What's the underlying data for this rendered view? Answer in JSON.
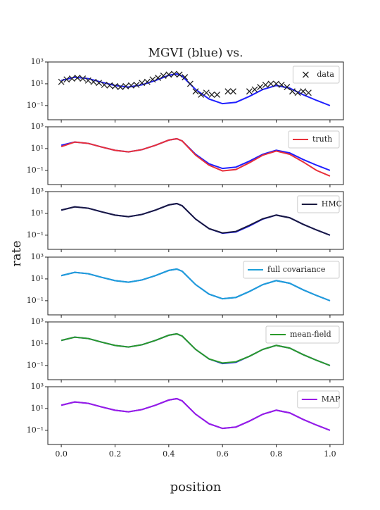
{
  "chart_data": [
    {
      "type": "line",
      "title": "MGVI (blue) vs.",
      "x": [
        0,
        0.05,
        0.1,
        0.15,
        0.2,
        0.25,
        0.3,
        0.35,
        0.4,
        0.43,
        0.45,
        0.5,
        0.55,
        0.6,
        0.65,
        0.7,
        0.75,
        0.8,
        0.85,
        0.9,
        0.95,
        1.0
      ],
      "series": [
        {
          "color": "#1f1fff",
          "values": [
            20,
            40,
            30,
            14,
            7,
            5,
            8,
            20,
            60,
            80,
            50,
            3,
            0.4,
            0.15,
            0.2,
            0.7,
            3,
            7,
            4,
            1,
            0.3,
            0.1
          ]
        },
        {
          "name": "data",
          "type": "scatter",
          "color": "#222222",
          "x": [
            0,
            0.02,
            0.04,
            0.06,
            0.08,
            0.1,
            0.12,
            0.14,
            0.16,
            0.18,
            0.2,
            0.22,
            0.24,
            0.26,
            0.28,
            0.3,
            0.32,
            0.34,
            0.36,
            0.38,
            0.4,
            0.42,
            0.44,
            0.46,
            0.48,
            0.5,
            0.52,
            0.54,
            0.56,
            0.58,
            0.62,
            0.64,
            0.7,
            0.72,
            0.74,
            0.76,
            0.78,
            0.8,
            0.82,
            0.84,
            0.86,
            0.88,
            0.9,
            0.92
          ],
          "values": [
            15,
            25,
            30,
            35,
            30,
            20,
            15,
            12,
            8,
            7,
            6,
            5,
            6,
            7,
            8,
            12,
            15,
            25,
            35,
            55,
            70,
            80,
            70,
            40,
            10,
            2,
            1,
            1.5,
            1,
            1,
            2,
            2,
            2,
            3,
            5,
            8,
            10,
            10,
            8,
            5,
            2,
            1.5,
            2,
            1.5
          ]
        }
      ],
      "ylog": true,
      "ylim": [
        0.005,
        1000
      ],
      "yticks": [
        {
          "value": 0.1,
          "label": "10⁻¹"
        },
        {
          "value": 10,
          "label": "10¹"
        },
        {
          "value": 1000,
          "label": "10³"
        }
      ],
      "xlim": [
        -0.05,
        1.05
      ],
      "xticks": [
        0,
        0.2,
        0.4,
        0.6,
        0.8,
        1.0
      ],
      "legend": "upper right"
    },
    {
      "type": "line",
      "x": [
        0,
        0.05,
        0.1,
        0.15,
        0.2,
        0.25,
        0.3,
        0.35,
        0.4,
        0.43,
        0.45,
        0.5,
        0.55,
        0.6,
        0.65,
        0.7,
        0.75,
        0.8,
        0.85,
        0.9,
        0.95,
        1.0
      ],
      "series": [
        {
          "color": "#1f1fff",
          "values": [
            20,
            40,
            30,
            14,
            7,
            5,
            8,
            20,
            60,
            80,
            50,
            3,
            0.4,
            0.15,
            0.2,
            0.7,
            3,
            7,
            4,
            1,
            0.3,
            0.1
          ]
        },
        {
          "name": "truth",
          "color": "#e8303a",
          "values": [
            15,
            40,
            30,
            14,
            7,
            5,
            8,
            20,
            60,
            80,
            50,
            2.5,
            0.3,
            0.09,
            0.12,
            0.5,
            2.5,
            6,
            3,
            0.6,
            0.1,
            0.03
          ]
        }
      ],
      "ylog": true,
      "ylim": [
        0.005,
        1000
      ],
      "yticks": [
        {
          "value": 0.1,
          "label": "10⁻¹"
        },
        {
          "value": 10,
          "label": "10¹"
        },
        {
          "value": 1000,
          "label": "10³"
        }
      ],
      "xlim": [
        -0.05,
        1.05
      ],
      "xticks": [
        0,
        0.2,
        0.4,
        0.6,
        0.8,
        1.0
      ],
      "legend": "upper right"
    },
    {
      "type": "line",
      "x": [
        0,
        0.05,
        0.1,
        0.15,
        0.2,
        0.25,
        0.3,
        0.35,
        0.4,
        0.43,
        0.45,
        0.5,
        0.55,
        0.6,
        0.65,
        0.7,
        0.75,
        0.8,
        0.85,
        0.9,
        0.95,
        1.0
      ],
      "series": [
        {
          "color": "#1f1fff",
          "values": [
            20,
            40,
            30,
            14,
            7,
            5,
            8,
            20,
            60,
            80,
            50,
            3,
            0.4,
            0.15,
            0.2,
            0.7,
            3,
            7,
            4,
            1,
            0.3,
            0.1
          ]
        },
        {
          "name": "HMC",
          "color": "#1a1a40",
          "values": [
            20,
            40,
            30,
            14,
            7,
            5,
            8,
            20,
            60,
            80,
            50,
            3,
            0.4,
            0.16,
            0.22,
            0.8,
            3.2,
            7,
            4,
            1,
            0.3,
            0.1
          ]
        }
      ],
      "ylog": true,
      "ylim": [
        0.005,
        1000
      ],
      "yticks": [
        {
          "value": 0.1,
          "label": "10⁻¹"
        },
        {
          "value": 10,
          "label": "10¹"
        },
        {
          "value": 1000,
          "label": "10³"
        }
      ],
      "xlim": [
        -0.05,
        1.05
      ],
      "xticks": [
        0,
        0.2,
        0.4,
        0.6,
        0.8,
        1.0
      ],
      "legend": "upper right"
    },
    {
      "type": "line",
      "x": [
        0,
        0.05,
        0.1,
        0.15,
        0.2,
        0.25,
        0.3,
        0.35,
        0.4,
        0.43,
        0.45,
        0.5,
        0.55,
        0.6,
        0.65,
        0.7,
        0.75,
        0.8,
        0.85,
        0.9,
        0.95,
        1.0
      ],
      "series": [
        {
          "color": "#1f1fff",
          "values": [
            20,
            40,
            30,
            14,
            7,
            5,
            8,
            20,
            60,
            80,
            50,
            3,
            0.4,
            0.15,
            0.2,
            0.7,
            3,
            7,
            4,
            1,
            0.3,
            0.1
          ]
        },
        {
          "name": "full covariance",
          "color": "#1ea0d8",
          "values": [
            20,
            40,
            30,
            14,
            7,
            5,
            8,
            20,
            60,
            80,
            50,
            3,
            0.4,
            0.15,
            0.2,
            0.7,
            3,
            7,
            4,
            1,
            0.3,
            0.1
          ]
        }
      ],
      "ylog": true,
      "ylim": [
        0.005,
        1000
      ],
      "yticks": [
        {
          "value": 0.1,
          "label": "10⁻¹"
        },
        {
          "value": 10,
          "label": "10¹"
        },
        {
          "value": 1000,
          "label": "10³"
        }
      ],
      "xlim": [
        -0.05,
        1.05
      ],
      "xticks": [
        0,
        0.2,
        0.4,
        0.6,
        0.8,
        1.0
      ],
      "legend": "upper right"
    },
    {
      "type": "line",
      "x": [
        0,
        0.05,
        0.1,
        0.15,
        0.2,
        0.25,
        0.3,
        0.35,
        0.4,
        0.43,
        0.45,
        0.5,
        0.55,
        0.6,
        0.65,
        0.7,
        0.75,
        0.8,
        0.85,
        0.9,
        0.95,
        1.0
      ],
      "series": [
        {
          "color": "#1f1fff",
          "values": [
            20,
            40,
            30,
            14,
            7,
            5,
            8,
            20,
            60,
            80,
            50,
            3,
            0.4,
            0.15,
            0.2,
            0.7,
            3,
            7,
            4,
            1,
            0.3,
            0.1
          ]
        },
        {
          "name": "mean-field",
          "color": "#2a9a2a",
          "values": [
            20,
            40,
            30,
            14,
            7,
            5,
            8,
            20,
            60,
            80,
            50,
            3,
            0.4,
            0.17,
            0.22,
            0.7,
            3,
            7,
            4,
            1,
            0.3,
            0.1
          ]
        }
      ],
      "ylog": true,
      "ylim": [
        0.005,
        1000
      ],
      "yticks": [
        {
          "value": 0.1,
          "label": "10⁻¹"
        },
        {
          "value": 10,
          "label": "10¹"
        },
        {
          "value": 1000,
          "label": "10³"
        }
      ],
      "xlim": [
        -0.05,
        1.05
      ],
      "xticks": [
        0,
        0.2,
        0.4,
        0.6,
        0.8,
        1.0
      ],
      "legend": "upper right"
    },
    {
      "type": "line",
      "xlabel": "position",
      "x": [
        0,
        0.05,
        0.1,
        0.15,
        0.2,
        0.25,
        0.3,
        0.35,
        0.4,
        0.43,
        0.45,
        0.5,
        0.55,
        0.6,
        0.65,
        0.7,
        0.75,
        0.8,
        0.85,
        0.9,
        0.95,
        1.0
      ],
      "series": [
        {
          "color": "#1f1fff",
          "values": [
            20,
            40,
            30,
            14,
            7,
            5,
            8,
            20,
            60,
            80,
            50,
            3,
            0.4,
            0.15,
            0.2,
            0.7,
            3,
            7,
            4,
            1,
            0.3,
            0.1
          ]
        },
        {
          "name": "MAP",
          "color": "#9a1ae6",
          "values": [
            20,
            40,
            30,
            14,
            7,
            5,
            8,
            20,
            60,
            80,
            50,
            3,
            0.4,
            0.15,
            0.2,
            0.7,
            3,
            7,
            4,
            1,
            0.3,
            0.1
          ]
        }
      ],
      "ylog": true,
      "ylim": [
        0.005,
        1000
      ],
      "yticks": [
        {
          "value": 0.1,
          "label": "10⁻¹"
        },
        {
          "value": 10,
          "label": "10¹"
        },
        {
          "value": 1000,
          "label": "10³"
        }
      ],
      "xlim": [
        -0.05,
        1.05
      ],
      "xticks": [
        {
          "value": 0,
          "label": "0.0"
        },
        0.2,
        0.4,
        0.6,
        0.8,
        {
          "value": 1.0,
          "label": "1.0"
        }
      ],
      "legend": "upper right"
    }
  ],
  "ylabel": "rate"
}
